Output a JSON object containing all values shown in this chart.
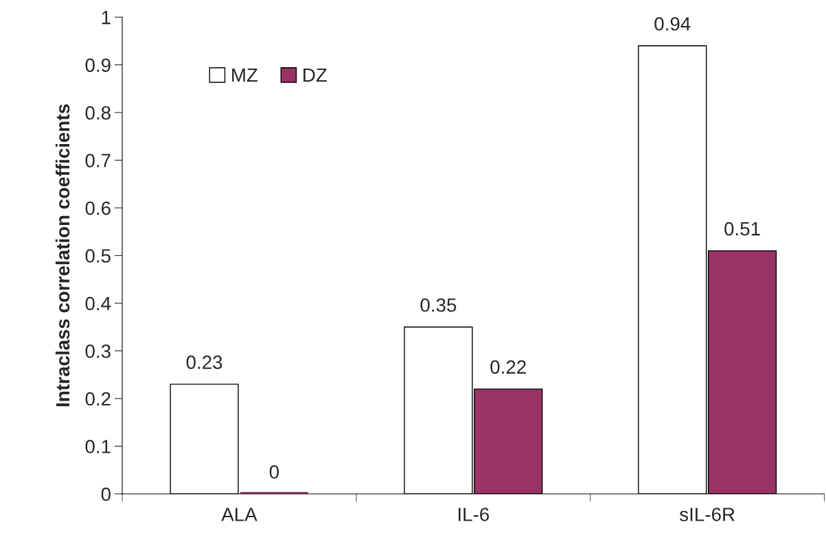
{
  "chart_data": {
    "type": "bar",
    "ylabel": "Intraclass correlation coefficients",
    "categories": [
      "ALA",
      "IL-6",
      "sIL-6R"
    ],
    "series": [
      {
        "name": "MZ",
        "color": "#ffffff",
        "values": [
          0.23,
          0.35,
          0.94
        ]
      },
      {
        "name": "DZ",
        "color": "#993366",
        "values": [
          0,
          0.22,
          0.51
        ]
      }
    ],
    "ylim": [
      0,
      1
    ],
    "yticks": [
      0,
      0.1,
      0.2,
      0.3,
      0.4,
      0.5,
      0.6,
      0.7,
      0.8,
      0.9,
      1
    ],
    "data_labels": true,
    "legend": "top left",
    "grid": false
  }
}
